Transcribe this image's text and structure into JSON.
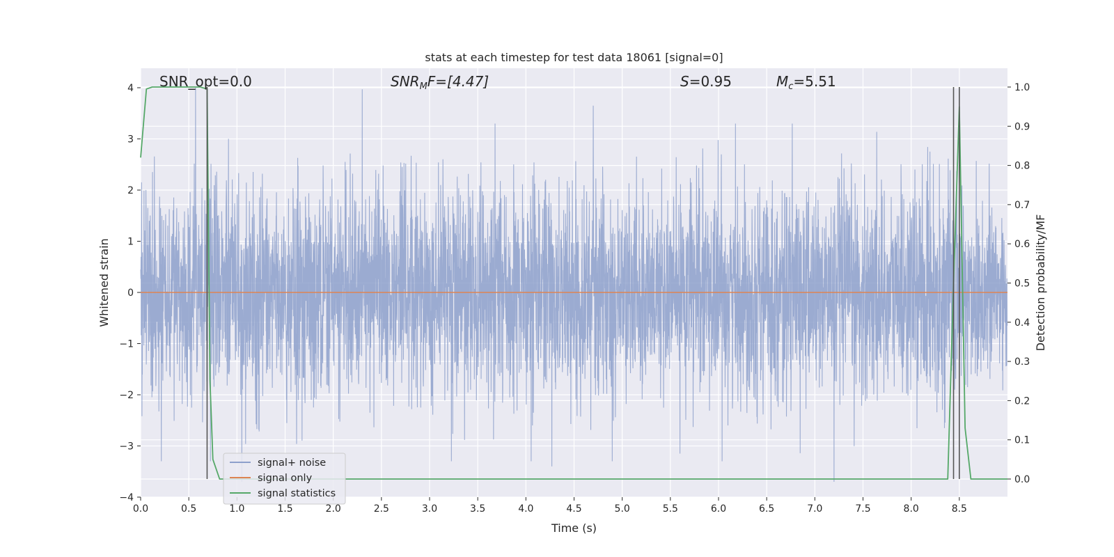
{
  "chart_data": {
    "type": "line",
    "title": "stats at each timestep for test data 18061 [signal=0]",
    "xlabel": "Time (s)",
    "ylabel": "Whitened strain",
    "y2label": "Detection probability/MF",
    "xlim": [
      0.0,
      9.0
    ],
    "ylim": [
      -4.0,
      4.0
    ],
    "y2lim": [
      -0.046,
      1.046
    ],
    "x_ticks": [
      "0.0",
      "0.5",
      "1.0",
      "1.5",
      "2.0",
      "2.5",
      "3.0",
      "3.5",
      "4.0",
      "4.5",
      "5.0",
      "5.5",
      "6.0",
      "6.5",
      "7.0",
      "7.5",
      "8.0",
      "8.5"
    ],
    "y_ticks": [
      "4",
      "3",
      "2",
      "1",
      "0",
      "−1",
      "−2",
      "−3",
      "−4"
    ],
    "y2_ticks": [
      "1.0",
      "0.9",
      "0.8",
      "0.7",
      "0.6",
      "0.5",
      "0.4",
      "0.3",
      "0.2",
      "0.1",
      "0.0"
    ],
    "grid": true,
    "legend_position": "lower-left",
    "annotations": {
      "snr_opt": "SNR_opt=0.0",
      "snr_mf_base": "SNR",
      "snr_mf_sub": "M",
      "snr_mf_tail": "F=[4.47]",
      "s_italic": "S",
      "s_value": "=0.95",
      "mc_italic": "M",
      "mc_sub": "c",
      "mc_value": "=5.51"
    },
    "series": [
      {
        "name": "signal+ noise",
        "color": "#8da0cb",
        "axis": "left",
        "kind": "noise",
        "sample_rate_hz": 512,
        "amplitude_sd": 1.0,
        "notable_peaks": [
          [
            0.57,
            4.0
          ],
          [
            2.3,
            3.97
          ],
          [
            4.7,
            3.65
          ],
          [
            1.05,
            -3.7
          ],
          [
            4.27,
            -3.4
          ],
          [
            7.2,
            -3.7
          ],
          [
            5.6,
            -3.15
          ]
        ]
      },
      {
        "name": "signal only",
        "color": "#dd8452",
        "axis": "left",
        "x": [
          0.0,
          9.0
        ],
        "values": [
          0.0,
          0.0
        ]
      },
      {
        "name": "signal statistics",
        "color": "#55a868",
        "axis": "right",
        "x": [
          0.0,
          0.06,
          0.12,
          0.25,
          0.5,
          0.62,
          0.69,
          0.72,
          0.75,
          0.82,
          1.0,
          2.0,
          4.0,
          6.0,
          8.0,
          8.38,
          8.44,
          8.5,
          8.56,
          8.62,
          8.69,
          9.0
        ],
        "values": [
          0.82,
          0.995,
          1.0,
          1.0,
          1.0,
          1.0,
          0.995,
          0.25,
          0.05,
          0.0,
          0.0,
          0.0,
          0.0,
          0.0,
          0.0,
          0.0,
          0.5,
          0.95,
          0.13,
          0.0,
          0.0,
          0.0
        ]
      }
    ],
    "detection_markers": [
      {
        "x": 0.69,
        "y2_from": 0.0,
        "y2_to": 1.0
      },
      {
        "x": 8.44,
        "y2_from": 0.0,
        "y2_to": 1.0
      },
      {
        "x": 8.5,
        "y2_from": 0.0,
        "y2_to": 1.0
      }
    ]
  }
}
